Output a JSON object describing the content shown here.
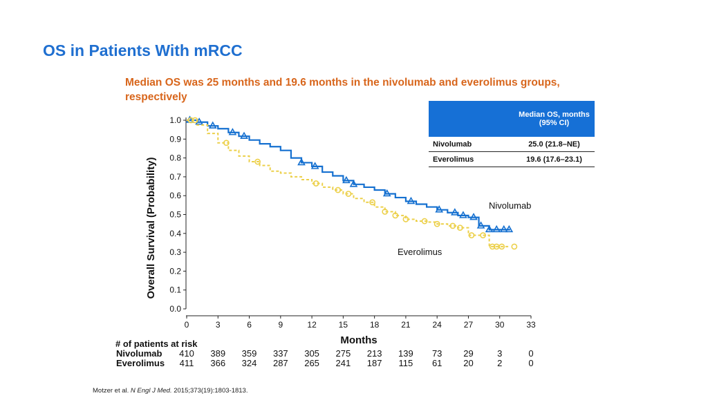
{
  "slide": {
    "title": "OS in Patients With mRCC",
    "subtitle": "Median OS was 25 months and 19.6 months in the nivolumab and everolimus groups, respectively",
    "citation_prefix": "Motzer et al.",
    "citation_journal": "N Engl J Med.",
    "citation_rest": "2015;373(19):1803-1813."
  },
  "median_table": {
    "header": "Median OS, months (95% CI)",
    "rows": [
      {
        "group": "Nivolumab",
        "value": "25.0 (21.8–NE)"
      },
      {
        "group": "Everolimus",
        "value": "19.6 (17.6–23.1)"
      }
    ]
  },
  "risk_table": {
    "title": "# of patients at risk",
    "rows": [
      {
        "label": "Nivolumab",
        "values": [
          "410",
          "389",
          "359",
          "337",
          "305",
          "275",
          "213",
          "139",
          "73",
          "29",
          "3",
          "0"
        ]
      },
      {
        "label": "Everolimus",
        "values": [
          "411",
          "366",
          "324",
          "287",
          "265",
          "241",
          "187",
          "115",
          "61",
          "20",
          "2",
          "0"
        ]
      }
    ]
  },
  "chart_data": {
    "type": "line",
    "title": "",
    "xlabel": "Months",
    "ylabel": "Overall Survival (Probability)",
    "xlim": [
      0,
      33
    ],
    "ylim": [
      0,
      1
    ],
    "xticks": [
      "0",
      "3",
      "6",
      "9",
      "12",
      "15",
      "18",
      "21",
      "24",
      "27",
      "30",
      "33"
    ],
    "yticks": [
      "0.0",
      "0.1",
      "0.2",
      "0.3",
      "0.4",
      "0.5",
      "0.6",
      "0.7",
      "0.8",
      "0.9",
      "1.0"
    ],
    "grid": false,
    "series": [
      {
        "name": "Nivolumab",
        "color": "#1570d0",
        "marker": "triangle",
        "x": [
          0,
          1,
          2,
          3,
          4,
          5,
          6,
          7,
          8,
          9,
          10,
          11,
          12,
          13,
          14,
          15,
          16,
          17,
          18,
          19,
          20,
          21,
          22,
          23,
          24,
          25,
          26,
          27,
          28,
          29,
          30,
          31
        ],
        "y": [
          1.0,
          0.99,
          0.97,
          0.955,
          0.935,
          0.915,
          0.895,
          0.875,
          0.86,
          0.84,
          0.8,
          0.775,
          0.755,
          0.725,
          0.705,
          0.68,
          0.66,
          0.645,
          0.63,
          0.61,
          0.59,
          0.57,
          0.555,
          0.54,
          0.525,
          0.51,
          0.495,
          0.485,
          0.44,
          0.42,
          0.42,
          0.42
        ],
        "censor_x": [
          0.3,
          1.2,
          2.5,
          4.4,
          5.5,
          11,
          12.3,
          15.3,
          16,
          19.2,
          21.5,
          24.2,
          25.7,
          26.5,
          27.5,
          28.2,
          29,
          29.7,
          30.4,
          30.9
        ]
      },
      {
        "name": "Everolimus",
        "color": "#ecd04a",
        "marker": "circle",
        "x": [
          0,
          1,
          2,
          3,
          4,
          5,
          6,
          7,
          8,
          9,
          10,
          11,
          12,
          13,
          14,
          15,
          16,
          17,
          18,
          19,
          20,
          21,
          22,
          23,
          24,
          25,
          26,
          27,
          28,
          29,
          30,
          31
        ],
        "y": [
          1.0,
          0.975,
          0.93,
          0.88,
          0.84,
          0.81,
          0.78,
          0.76,
          0.73,
          0.72,
          0.7,
          0.685,
          0.665,
          0.645,
          0.63,
          0.61,
          0.585,
          0.565,
          0.54,
          0.515,
          0.495,
          0.475,
          0.465,
          0.46,
          0.45,
          0.44,
          0.43,
          0.39,
          0.39,
          0.33,
          0.33,
          0.33
        ],
        "censor_x": [
          0.4,
          0.8,
          3.8,
          6.8,
          12.4,
          14.5,
          15.5,
          17.8,
          19,
          20,
          21,
          22.8,
          24,
          25.5,
          26.2,
          27.3,
          28.4,
          29.3,
          29.7,
          30.2,
          31.4
        ]
      }
    ],
    "annotations": [
      "Nivolumab",
      "Everolimus"
    ]
  }
}
